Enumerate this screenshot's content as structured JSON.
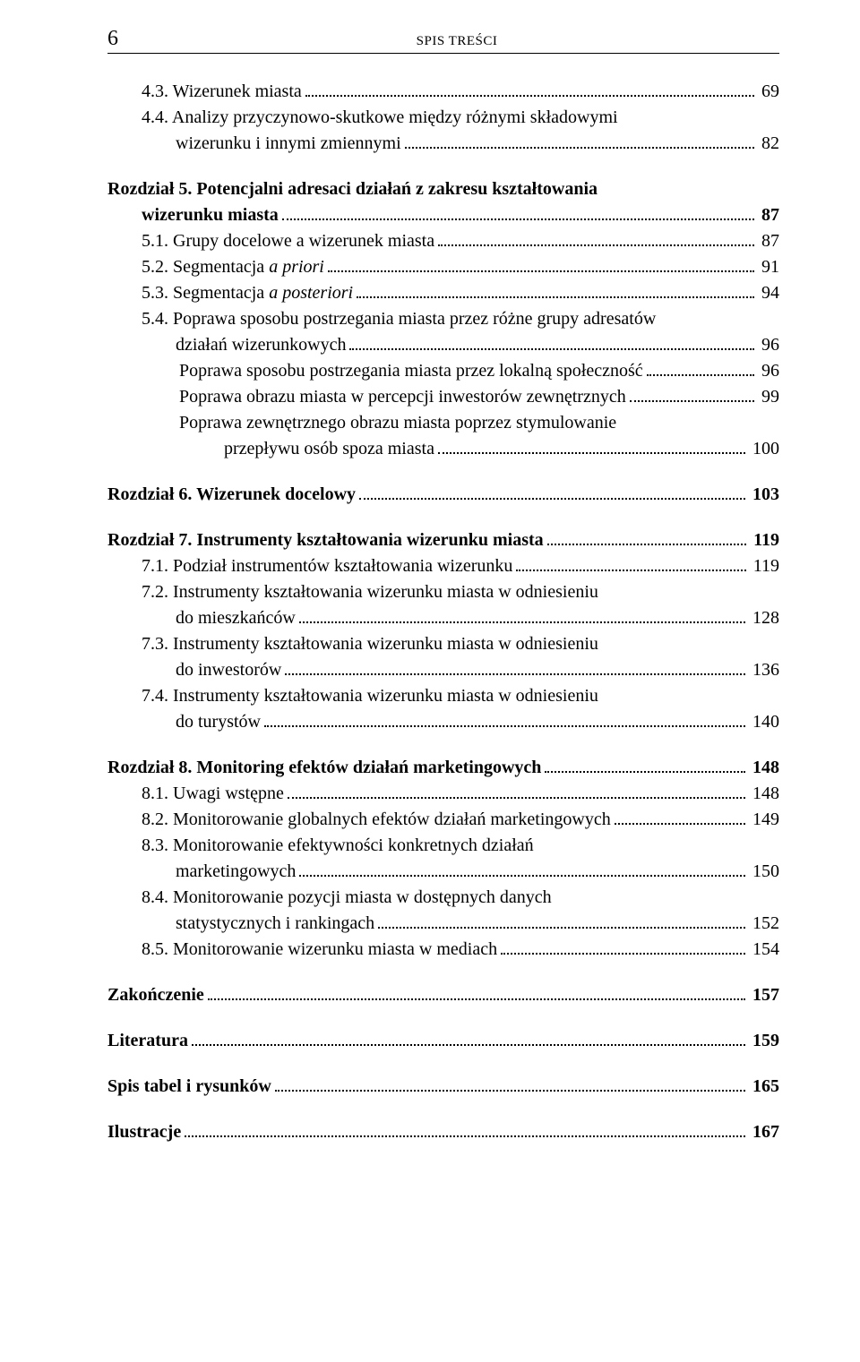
{
  "header": {
    "page_number": "6",
    "title": "SPIS TREŚCI"
  },
  "lines": [
    {
      "label": "4.3. Wizerunek miasta",
      "page": "69",
      "indent": "indent-1"
    },
    {
      "label": "4.4. Analizy przyczynowo-skutkowe między różnymi składowymi",
      "indent": "hang-1",
      "nodots": true
    },
    {
      "label": "wizerunku i innymi zmiennymi",
      "page": "82",
      "indent": "cont-1"
    },
    {
      "label": "Rozdział 5. Potencjalni adresaci działań z zakresu kształtowania",
      "bold": true,
      "gap": true,
      "nodots": true
    },
    {
      "label": "wizerunku miasta",
      "page": "87",
      "bold": true,
      "indent": "indent-1"
    },
    {
      "label": "5.1. Grupy docelowe a wizerunek miasta",
      "page": "87",
      "indent": "indent-1"
    },
    {
      "label_parts": [
        {
          "t": "5.2. Segmentacja "
        },
        {
          "t": "a priori",
          "italic": true
        }
      ],
      "page": "91",
      "indent": "indent-1"
    },
    {
      "label_parts": [
        {
          "t": "5.3. Segmentacja "
        },
        {
          "t": "a posteriori",
          "italic": true
        }
      ],
      "page": "94",
      "indent": "indent-1"
    },
    {
      "label": "5.4. Poprawa sposobu postrzegania miasta przez różne grupy adresatów",
      "indent": "hang-1",
      "nodots": true
    },
    {
      "label": "działań wizerunkowych",
      "page": "96",
      "indent": "cont-1"
    },
    {
      "label": "Poprawa sposobu postrzegania miasta przez lokalną społeczność",
      "page": "96",
      "indent": "indent-2"
    },
    {
      "label": "Poprawa obrazu miasta w percepcji inwestorów zewnętrznych",
      "page": "99",
      "indent": "indent-2"
    },
    {
      "label": "Poprawa zewnętrznego obrazu miasta poprzez stymulowanie",
      "indent": "indent-2",
      "nodots": true
    },
    {
      "label": "przepływu osób spoza miasta",
      "page": "100",
      "indent": "indent-3"
    },
    {
      "label": "Rozdział 6. Wizerunek docelowy",
      "page": "103",
      "bold": true,
      "gap": true
    },
    {
      "label": "Rozdział 7. Instrumenty kształtowania wizerunku miasta",
      "page": "119",
      "bold": true,
      "gap": true
    },
    {
      "label": "7.1. Podział instrumentów kształtowania wizerunku",
      "page": "119",
      "indent": "indent-1"
    },
    {
      "label": "7.2. Instrumenty kształtowania wizerunku miasta w odniesieniu",
      "indent": "hang-1",
      "nodots": true
    },
    {
      "label": "do mieszkańców",
      "page": "128",
      "indent": "cont-1"
    },
    {
      "label": "7.3. Instrumenty kształtowania wizerunku miasta w odniesieniu",
      "indent": "hang-1",
      "nodots": true
    },
    {
      "label": "do inwestorów",
      "page": "136",
      "indent": "cont-1"
    },
    {
      "label": "7.4. Instrumenty kształtowania wizerunku miasta w odniesieniu",
      "indent": "hang-1",
      "nodots": true
    },
    {
      "label": "do turystów",
      "page": "140",
      "indent": "cont-1"
    },
    {
      "label": "Rozdział 8. Monitoring efektów działań marketingowych",
      "page": "148",
      "bold": true,
      "gap": true
    },
    {
      "label": "8.1. Uwagi wstępne",
      "page": "148",
      "indent": "indent-1"
    },
    {
      "label": "8.2. Monitorowanie globalnych efektów działań marketingowych",
      "page": "149",
      "indent": "indent-1"
    },
    {
      "label": "8.3. Monitorowanie efektywności konkretnych działań",
      "indent": "hang-1",
      "nodots": true
    },
    {
      "label": "marketingowych",
      "page": "150",
      "indent": "cont-1"
    },
    {
      "label": "8.4. Monitorowanie pozycji miasta w dostępnych danych",
      "indent": "hang-1",
      "nodots": true
    },
    {
      "label": "statystycznych i rankingach",
      "page": "152",
      "indent": "cont-1"
    },
    {
      "label": "8.5. Monitorowanie wizerunku miasta w mediach",
      "page": "154",
      "indent": "indent-1"
    },
    {
      "label": "Zakończenie",
      "page": "157",
      "bold": true,
      "gap": true
    },
    {
      "label": "Literatura",
      "page": "159",
      "bold": true,
      "gap": true
    },
    {
      "label": "Spis tabel i rysunków",
      "page": "165",
      "bold": true,
      "gap": true
    },
    {
      "label": "Ilustracje",
      "page": "167",
      "bold": true,
      "gap": true
    }
  ]
}
